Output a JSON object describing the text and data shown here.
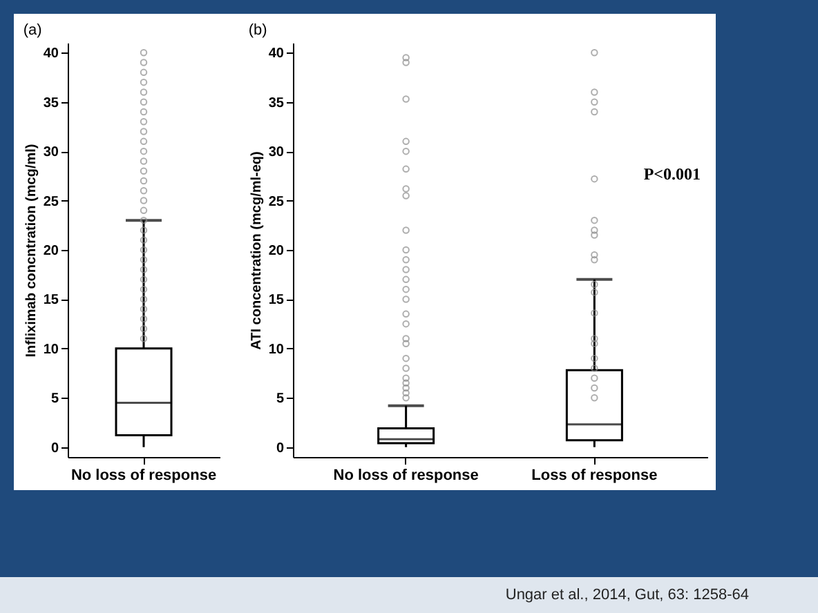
{
  "chart_data": [
    {
      "type": "box",
      "title": "(a)",
      "ylabel": "Infliximab concntration (mcg/ml)",
      "categories": [
        "No loss of response"
      ],
      "ylim": [
        -1,
        41
      ],
      "yticks": [
        0,
        5,
        10,
        15,
        20,
        25,
        30,
        35,
        40
      ],
      "grid": false,
      "boxes": [
        {
          "low": 0,
          "q1": 1.2,
          "median": 4.5,
          "q3": 10,
          "high": 23
        }
      ],
      "series": [
        {
          "type": "scatter",
          "color": "#8c8c8c",
          "marker": "circle",
          "x": [
            "No loss of response",
            "No loss of response",
            "No loss of response",
            "No loss of response",
            "No loss of response",
            "No loss of response",
            "No loss of response",
            "No loss of response",
            "No loss of response",
            "No loss of response",
            "No loss of response",
            "No loss of response",
            "No loss of response",
            "No loss of response",
            "No loss of response",
            "No loss of response",
            "No loss of response",
            "No loss of response",
            "No loss of response",
            "No loss of response",
            "No loss of response",
            "No loss of response",
            "No loss of response",
            "No loss of response",
            "No loss of response",
            "No loss of response",
            "No loss of response",
            "No loss of response",
            "No loss of response",
            "No loss of response"
          ],
          "values": [
            40,
            39,
            38,
            37,
            36,
            35,
            34,
            33,
            32,
            31,
            30,
            29,
            28,
            27,
            26,
            25,
            24,
            23,
            22,
            21,
            20,
            19,
            18,
            17,
            16,
            15,
            14,
            13,
            12,
            11
          ]
        }
      ]
    },
    {
      "type": "box",
      "title": "(b)",
      "ylabel": "ATI concentration (mcg/ml-eq)",
      "categories": [
        "No loss of response",
        "Loss of response"
      ],
      "ylim": [
        -1,
        41
      ],
      "yticks": [
        0,
        5,
        10,
        15,
        20,
        25,
        30,
        35,
        40
      ],
      "grid": false,
      "boxes": [
        {
          "low": 0,
          "q1": 0.4,
          "median": 0.8,
          "q3": 1.9,
          "high": 4.2
        },
        {
          "low": 0,
          "q1": 0.7,
          "median": 2.3,
          "q3": 7.8,
          "high": 17
        }
      ],
      "series": [
        {
          "type": "scatter",
          "color": "#8c8c8c",
          "marker": "circle",
          "x": [
            "No loss of response",
            "No loss of response",
            "No loss of response",
            "No loss of response",
            "No loss of response",
            "No loss of response",
            "No loss of response",
            "No loss of response",
            "No loss of response",
            "No loss of response",
            "No loss of response",
            "No loss of response",
            "No loss of response",
            "No loss of response",
            "No loss of response",
            "No loss of response",
            "No loss of response",
            "No loss of response",
            "No loss of response",
            "No loss of response",
            "No loss of response",
            "No loss of response",
            "No loss of response",
            "No loss of response",
            "No loss of response",
            "No loss of response",
            "Loss of response",
            "Loss of response",
            "Loss of response",
            "Loss of response",
            "Loss of response",
            "Loss of response",
            "Loss of response",
            "Loss of response",
            "Loss of response",
            "Loss of response",
            "Loss of response",
            "Loss of response",
            "Loss of response",
            "Loss of response",
            "Loss of response",
            "Loss of response",
            "Loss of response",
            "Loss of response",
            "Loss of response",
            "Loss of response"
          ],
          "values": [
            39.5,
            39,
            35.3,
            31,
            30,
            28.2,
            26.2,
            25.5,
            22,
            20,
            19,
            18,
            17,
            16,
            15,
            13.5,
            12.5,
            11,
            10.5,
            9,
            8,
            7,
            6.5,
            6,
            5.5,
            5,
            40,
            36,
            35,
            34,
            27.2,
            23,
            22,
            21.5,
            19.5,
            19,
            16.5,
            15.7,
            13.6,
            11,
            10.5,
            9,
            8,
            7,
            6,
            5
          ]
        }
      ],
      "annotations": [
        "P<0.001",
        "Ungar et al., 2014, Gut, 63: 1258-64"
      ]
    }
  ]
}
